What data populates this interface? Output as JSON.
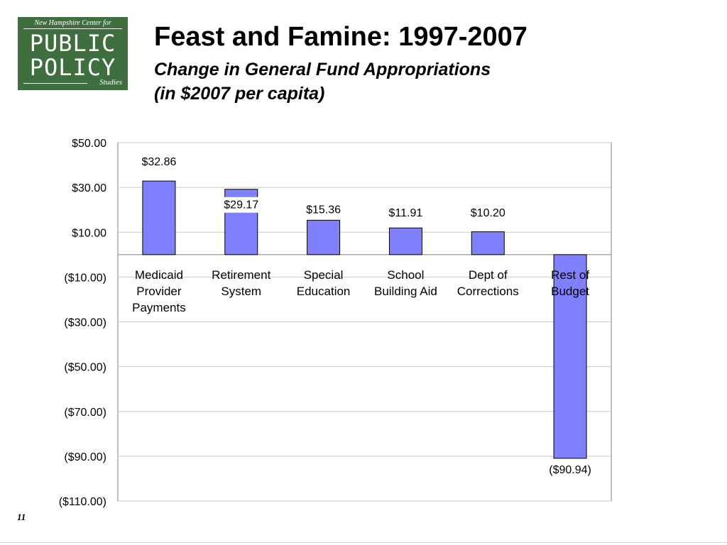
{
  "logo": {
    "top_text": "New Hampshire Center for",
    "line1": "PUBLIC",
    "line2": "POLICY",
    "bottom_text": "Studies"
  },
  "header": {
    "title": "Feast and Famine: 1997-2007",
    "subtitle_line1": "Change in General Fund Appropriations",
    "subtitle_line2": "(in $2007 per capita)"
  },
  "page_number": "11",
  "chart_data": {
    "type": "bar",
    "categories": [
      [
        "Medicaid",
        "Provider",
        "Payments"
      ],
      [
        "Retirement",
        "System"
      ],
      [
        "Special",
        "Education"
      ],
      [
        "School",
        "Building Aid"
      ],
      [
        "Dept of",
        "Corrections"
      ],
      [
        "Rest of",
        "Budget"
      ]
    ],
    "values": [
      32.86,
      29.17,
      15.36,
      11.91,
      10.2,
      -90.94
    ],
    "data_labels": [
      "$32.86",
      "$29.17",
      "$15.36",
      "$11.91",
      "$10.20",
      "($90.94)"
    ],
    "ylim": [
      -110,
      50
    ],
    "yticks": [
      50,
      30,
      10,
      -10,
      -30,
      -50,
      -70,
      -90,
      -110
    ],
    "ytick_labels": [
      "$50.00",
      "$30.00",
      "$10.00",
      "($10.00)",
      "($30.00)",
      "($50.00)",
      "($70.00)",
      "($90.00)",
      "($110.00)"
    ],
    "grid": true,
    "bar_color": "#8080ff"
  }
}
